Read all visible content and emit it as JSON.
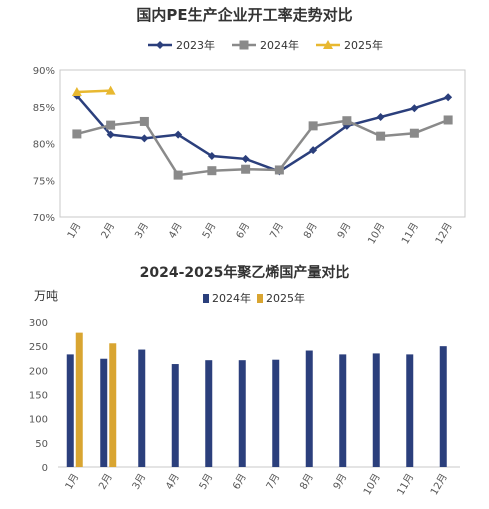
{
  "chart_data": [
    {
      "type": "line",
      "title": "国内PE生产企业开工率走势对比",
      "xlabel": "",
      "ylabel": "",
      "categories": [
        "1月",
        "2月",
        "3月",
        "4月",
        "5月",
        "6月",
        "7月",
        "8月",
        "9月",
        "10月",
        "11月",
        "12月"
      ],
      "y_ticks": [
        "70%",
        "75%",
        "80%",
        "85%",
        "90%"
      ],
      "ylim": [
        70,
        90
      ],
      "grid": false,
      "legend": "top",
      "series": [
        {
          "name": "2023年",
          "color": "#2b3f7c",
          "marker": "diamond",
          "values": [
            86.5,
            81.2,
            80.7,
            81.2,
            78.3,
            77.9,
            76.2,
            79.1,
            82.4,
            83.6,
            84.8,
            86.3
          ]
        },
        {
          "name": "2024年",
          "color": "#8a8a8a",
          "marker": "square",
          "values": [
            81.3,
            82.5,
            83.0,
            75.7,
            76.3,
            76.5,
            76.4,
            82.4,
            83.1,
            81.0,
            81.4,
            83.2
          ]
        },
        {
          "name": "2025年",
          "color": "#e8b830",
          "marker": "triangle",
          "values": [
            87.0,
            87.2,
            null,
            null,
            null,
            null,
            null,
            null,
            null,
            null,
            null,
            null
          ]
        }
      ]
    },
    {
      "type": "bar",
      "title": "2024-2025年聚乙烯国产量对比",
      "unit": "万吨",
      "xlabel": "",
      "ylabel": "",
      "categories": [
        "1月",
        "2月",
        "3月",
        "4月",
        "5月",
        "6月",
        "7月",
        "8月",
        "9月",
        "10月",
        "11月",
        "12月"
      ],
      "y_ticks": [
        "0",
        "50",
        "100",
        "150",
        "200",
        "250",
        "300"
      ],
      "ylim": [
        0,
        300
      ],
      "grid": false,
      "legend": "top",
      "series": [
        {
          "name": "2024年",
          "color": "#2b3f7c",
          "values": [
            233,
            224,
            243,
            213,
            221,
            221,
            222,
            241,
            233,
            235,
            233,
            250
          ]
        },
        {
          "name": "2025年",
          "color": "#d9a531",
          "values": [
            278,
            256,
            null,
            null,
            null,
            null,
            null,
            null,
            null,
            null,
            null,
            null
          ]
        }
      ]
    }
  ]
}
